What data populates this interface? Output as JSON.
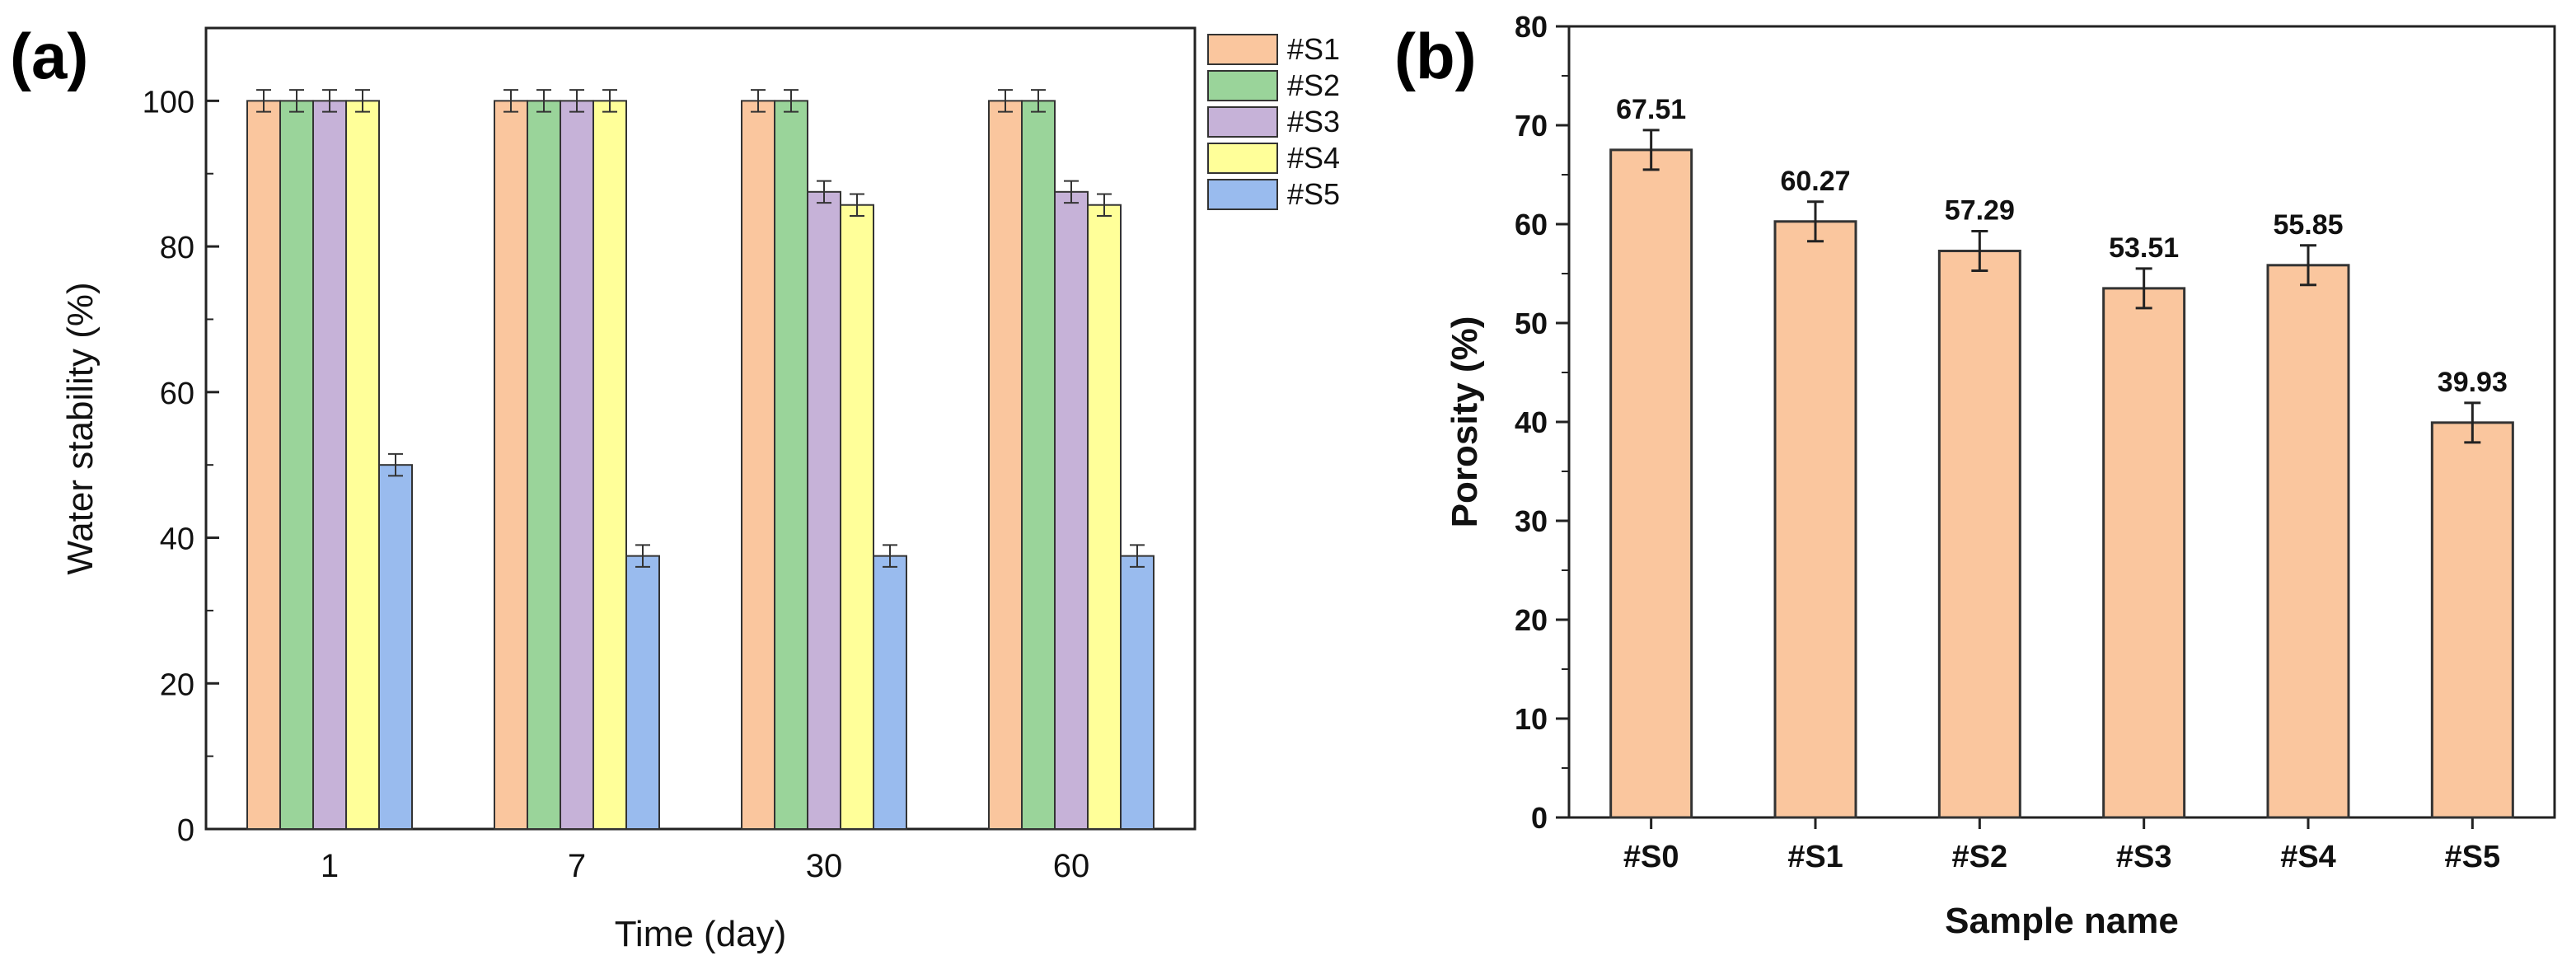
{
  "chart_data": [
    {
      "panel": "(a)",
      "type": "bar",
      "title": "",
      "xlabel": "Time (day)",
      "ylabel": "Water stability (%)",
      "ylim": [
        0,
        110
      ],
      "yticks": [
        0,
        20,
        40,
        60,
        80,
        100
      ],
      "grid": false,
      "legend_position": "outside-right",
      "categories": [
        "1",
        "7",
        "30",
        "60"
      ],
      "series": [
        {
          "name": "#S1",
          "color": "#FAC69E",
          "values": [
            100,
            100,
            100,
            100
          ],
          "errors": [
            1.5,
            1.5,
            1.5,
            1.5
          ]
        },
        {
          "name": "#S2",
          "color": "#9AD49A",
          "values": [
            100,
            100,
            100,
            100
          ],
          "errors": [
            1.5,
            1.5,
            1.5,
            1.5
          ]
        },
        {
          "name": "#S3",
          "color": "#C6B2D8",
          "values": [
            100,
            100,
            87.5,
            87.5
          ],
          "errors": [
            1.5,
            1.5,
            1.5,
            1.5
          ]
        },
        {
          "name": "#S4",
          "color": "#FFFF99",
          "values": [
            100,
            100,
            85.7,
            85.7
          ],
          "errors": [
            1.5,
            1.5,
            1.5,
            1.5
          ]
        },
        {
          "name": "#S5",
          "color": "#99BBEE",
          "values": [
            50,
            37.5,
            37.5,
            37.5
          ],
          "errors": [
            1.5,
            1.5,
            1.5,
            1.5
          ]
        }
      ]
    },
    {
      "panel": "(b)",
      "type": "bar",
      "title": "",
      "xlabel": "Sample name",
      "ylabel": "Porosity (%)",
      "ylim": [
        0,
        80
      ],
      "yticks": [
        0,
        10,
        20,
        30,
        40,
        50,
        60,
        70,
        80
      ],
      "grid": false,
      "color": "#FAC69E",
      "categories": [
        "#S0",
        "#S1",
        "#S2",
        "#S3",
        "#S4",
        "#S5"
      ],
      "values": [
        67.51,
        60.27,
        57.29,
        53.51,
        55.85,
        39.93
      ],
      "value_labels": [
        "67.51",
        "60.27",
        "57.29",
        "53.51",
        "55.85",
        "39.93"
      ],
      "errors": [
        2,
        2,
        2,
        2,
        2,
        2
      ]
    }
  ]
}
